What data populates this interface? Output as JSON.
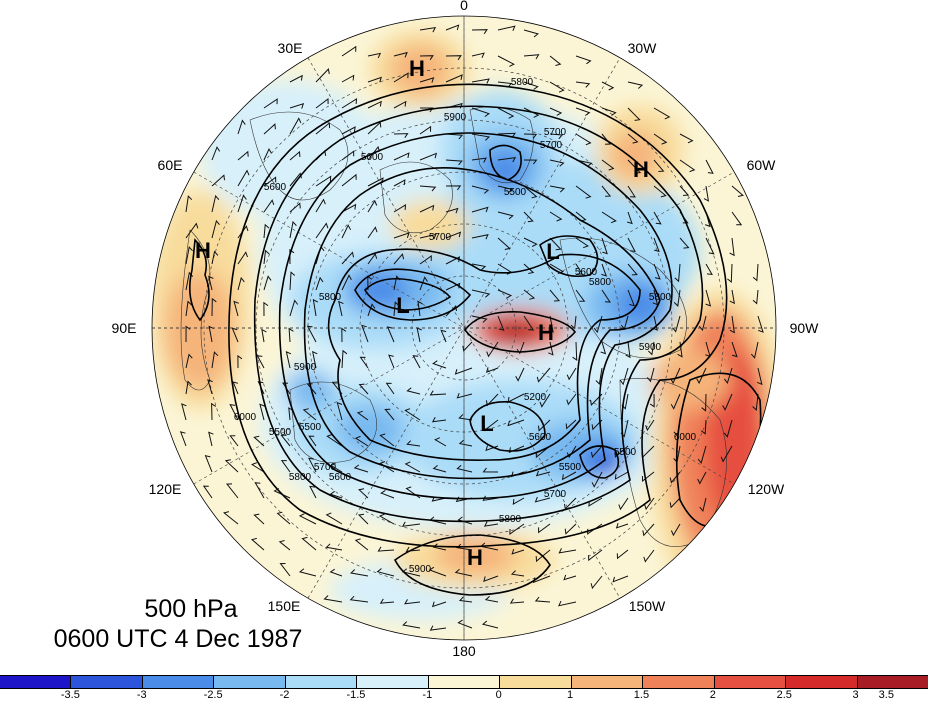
{
  "title": {
    "level": "500 hPa",
    "time": "0600 UTC 4 Dec 1987"
  },
  "longitude_labels": [
    {
      "text": "0",
      "bearing": 0
    },
    {
      "text": "30W",
      "bearing": 30
    },
    {
      "text": "60W",
      "bearing": 60
    },
    {
      "text": "90W",
      "bearing": 90
    },
    {
      "text": "120W",
      "bearing": 120
    },
    {
      "text": "150W",
      "bearing": 150
    },
    {
      "text": "180",
      "bearing": 180
    },
    {
      "text": "150E",
      "bearing": 210
    },
    {
      "text": "120E",
      "bearing": 240
    },
    {
      "text": "90E",
      "bearing": 270
    },
    {
      "text": "60E",
      "bearing": 300
    },
    {
      "text": "30E",
      "bearing": 330
    }
  ],
  "pressure_centers": [
    {
      "text": "H",
      "type": "high"
    },
    {
      "text": "H",
      "type": "high"
    },
    {
      "text": "H",
      "type": "high"
    },
    {
      "text": "H",
      "type": "high"
    },
    {
      "text": "H",
      "type": "high"
    },
    {
      "text": "L",
      "type": "low"
    },
    {
      "text": "L",
      "type": "low"
    },
    {
      "text": "L",
      "type": "low"
    }
  ],
  "contour_labels": [
    "5800",
    "5700",
    "5700",
    "5500",
    "5600",
    "5600",
    "5800",
    "5900",
    "5600",
    "5700",
    "5800",
    "5900",
    "5500",
    "5200",
    "5600",
    "5500",
    "5700",
    "5800",
    "5900",
    "5800",
    "5700",
    "5600",
    "5500",
    "6000",
    "5900",
    "5800",
    "5500",
    "6000"
  ],
  "colorbar": {
    "colors": [
      "#1e14c8",
      "#2d55dc",
      "#4b8ce8",
      "#78b9f0",
      "#aadcf8",
      "#d7f0fa",
      "#fbf5d6",
      "#f8dc9c",
      "#f5b47a",
      "#f0825a",
      "#e65040",
      "#d42a2a",
      "#a81c26"
    ],
    "tick_labels": [
      "-3.5",
      "-3",
      "-2.5",
      "-2",
      "-1.5",
      "-1",
      "0",
      "1",
      "1.5",
      "2",
      "2.5",
      "3",
      "3.5"
    ]
  }
}
